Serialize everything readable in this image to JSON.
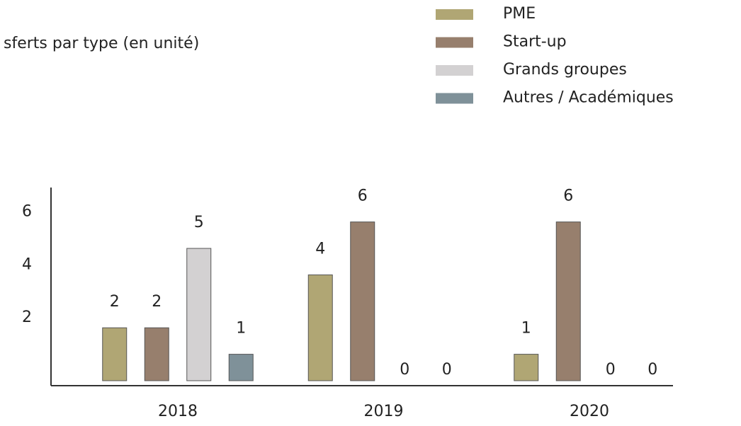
{
  "chart_data": {
    "type": "bar",
    "title": "sferts par type (en unité)",
    "categories": [
      "2018",
      "2019",
      "2020"
    ],
    "series": [
      {
        "name": "PME",
        "color": "#b0a674",
        "values": [
          2,
          4,
          1
        ]
      },
      {
        "name": "Start-up",
        "color": "#977f6d",
        "values": [
          2,
          6,
          6
        ]
      },
      {
        "name": "Grands groupes",
        "color": "#d3d1d2",
        "values": [
          5,
          0,
          0
        ]
      },
      {
        "name": "Autres / Académiques",
        "color": "#7f9199",
        "values": [
          1,
          0,
          0
        ]
      }
    ],
    "ylim": [
      0,
      7.3
    ],
    "yticks": [
      2,
      4,
      6
    ],
    "grid": false,
    "legend": "top-right"
  }
}
